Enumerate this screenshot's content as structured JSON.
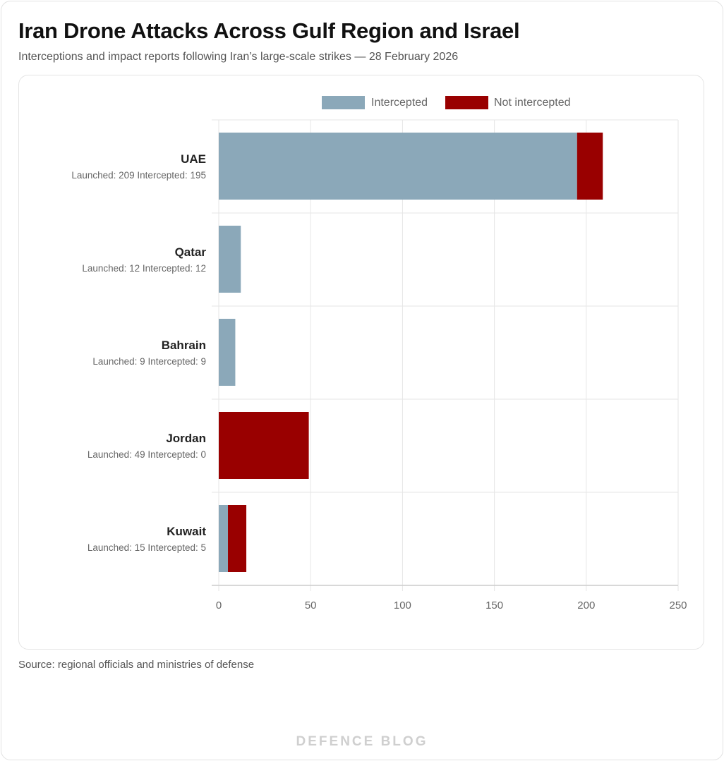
{
  "header": {
    "title": "Iran Drone Attacks Across Gulf Region and Israel",
    "subtitle": "Interceptions and impact reports following Iran’s large-scale strikes — 28 February 2026"
  },
  "footer": {
    "source": "Source: regional officials and ministries of defense",
    "brand": "DEFENCE BLOG"
  },
  "chart_data": {
    "type": "bar",
    "orientation": "horizontal",
    "stacked": true,
    "categories": [
      "UAE",
      "Qatar",
      "Bahrain",
      "Jordan",
      "Kuwait"
    ],
    "sublabels": [
      "Launched: 209  Intercepted: 195",
      "Launched: 12  Intercepted: 12",
      "Launched: 9  Intercepted: 9",
      "Launched: 49  Intercepted: 0",
      "Launched: 15  Intercepted: 5"
    ],
    "series": [
      {
        "name": "Intercepted",
        "color": "#8ba8b9",
        "values": [
          195,
          12,
          9,
          0,
          5
        ]
      },
      {
        "name": "Not intercepted",
        "color": "#990000",
        "values": [
          14,
          0,
          0,
          49,
          10
        ]
      }
    ],
    "xlim": [
      0,
      250
    ],
    "xticks": [
      "0",
      "50",
      "100",
      "150",
      "200",
      "250"
    ],
    "legend": "top-center",
    "grid": true
  }
}
